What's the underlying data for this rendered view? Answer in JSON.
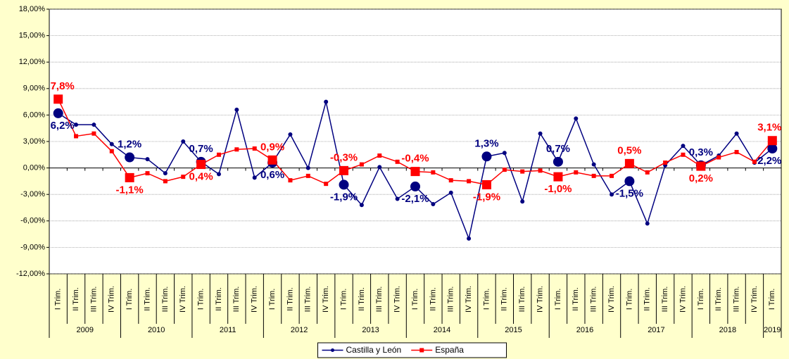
{
  "chart_data": {
    "type": "line",
    "year_groups": [
      {
        "label": "2009",
        "categories": [
          "I Trim.",
          "II Trim.",
          "III Trim.",
          "IV Trim."
        ]
      },
      {
        "label": "2010",
        "categories": [
          "I Trim.",
          "II Trim.",
          "III Trim.",
          "IV Trim."
        ]
      },
      {
        "label": "2011",
        "categories": [
          "I Trim.",
          "II Trim.",
          "III Trim.",
          "IV Trim."
        ]
      },
      {
        "label": "2012",
        "categories": [
          "I Trim.",
          "II Trim.",
          "III Trim.",
          "IV Trim."
        ]
      },
      {
        "label": "2013",
        "categories": [
          "I Trim.",
          "II Trim.",
          "III Trim.",
          "IV Trim."
        ]
      },
      {
        "label": "2014",
        "categories": [
          "I Trim.",
          "II Trim.",
          "III Trim.",
          "IV Trim."
        ]
      },
      {
        "label": "2015",
        "categories": [
          "I Trim.",
          "II Trim.",
          "III Trim.",
          "IV Trim."
        ]
      },
      {
        "label": "2016",
        "categories": [
          "I Trim.",
          "II Trim.",
          "III Trim.",
          "IV Trim."
        ]
      },
      {
        "label": "2017",
        "categories": [
          "I Trim.",
          "II Trim.",
          "III Trim.",
          "IV Trim."
        ]
      },
      {
        "label": "2018",
        "categories": [
          "I Trim.",
          "II Trim.",
          "III Trim.",
          "IV Trim."
        ]
      },
      {
        "label": "2019",
        "categories": [
          "I Trim."
        ]
      }
    ],
    "series": [
      {
        "name": "Castilla y León",
        "color": "#000080",
        "marker": "circle",
        "values": [
          6.2,
          4.9,
          4.9,
          2.7,
          1.2,
          1.0,
          -0.6,
          3.0,
          0.7,
          -0.7,
          6.6,
          -1.1,
          0.6,
          3.8,
          0.0,
          7.5,
          -1.9,
          -4.2,
          0.1,
          -3.5,
          -2.1,
          -4.1,
          -2.8,
          -8.0,
          1.3,
          1.7,
          -3.8,
          3.9,
          0.7,
          5.6,
          0.4,
          -3.0,
          -1.5,
          -6.3,
          0.3,
          2.5,
          0.3,
          1.4,
          3.9,
          0.6,
          2.2
        ],
        "value_labels": [
          "6,2%",
          null,
          null,
          null,
          "1,2%",
          null,
          null,
          null,
          "0,7%",
          null,
          null,
          null,
          "0,6%",
          null,
          null,
          null,
          "-1,9%",
          null,
          null,
          null,
          "-2,1%",
          null,
          null,
          null,
          "1,3%",
          null,
          null,
          null,
          "0,7%",
          null,
          null,
          null,
          "-1,5%",
          null,
          null,
          null,
          "0,3%",
          null,
          null,
          null,
          "2,2%"
        ]
      },
      {
        "name": "España",
        "color": "#ff0000",
        "marker": "square",
        "values": [
          7.8,
          3.6,
          3.9,
          1.9,
          -1.1,
          -0.6,
          -1.5,
          -1.0,
          0.4,
          1.5,
          2.1,
          2.2,
          0.9,
          -1.4,
          -0.9,
          -1.8,
          -0.3,
          0.4,
          1.4,
          0.7,
          -0.4,
          -0.5,
          -1.4,
          -1.5,
          -1.9,
          -0.2,
          -0.4,
          -0.3,
          -1.0,
          -0.5,
          -0.9,
          -0.9,
          0.5,
          -0.5,
          0.6,
          1.5,
          0.2,
          1.2,
          1.8,
          0.7,
          3.1
        ],
        "value_labels": [
          "7,8%",
          null,
          null,
          null,
          "-1,1%",
          null,
          null,
          null,
          "0,4%",
          null,
          null,
          null,
          "0,9%",
          null,
          null,
          null,
          "-0,3%",
          null,
          null,
          null,
          "-0,4%",
          null,
          null,
          null,
          "-1,9%",
          null,
          null,
          null,
          "-1,0%",
          null,
          null,
          null,
          "0,5%",
          null,
          null,
          null,
          "0,2%",
          null,
          null,
          null,
          "3,1%"
        ]
      }
    ],
    "ylim": [
      -12,
      18
    ],
    "yticks": [
      {
        "value": -12,
        "label": "-12,00%"
      },
      {
        "value": -9,
        "label": "-9,00%"
      },
      {
        "value": -6,
        "label": "-6,00%"
      },
      {
        "value": -3,
        "label": "-3,00%"
      },
      {
        "value": 0,
        "label": "0,00%"
      },
      {
        "value": 3,
        "label": "3,00%"
      },
      {
        "value": 6,
        "label": "6,00%"
      },
      {
        "value": 9,
        "label": "9,00%"
      },
      {
        "value": 12,
        "label": "12,00%"
      },
      {
        "value": 15,
        "label": "15,00%"
      },
      {
        "value": 18,
        "label": "18,00%"
      }
    ],
    "grid": true,
    "legend": "bottom"
  }
}
